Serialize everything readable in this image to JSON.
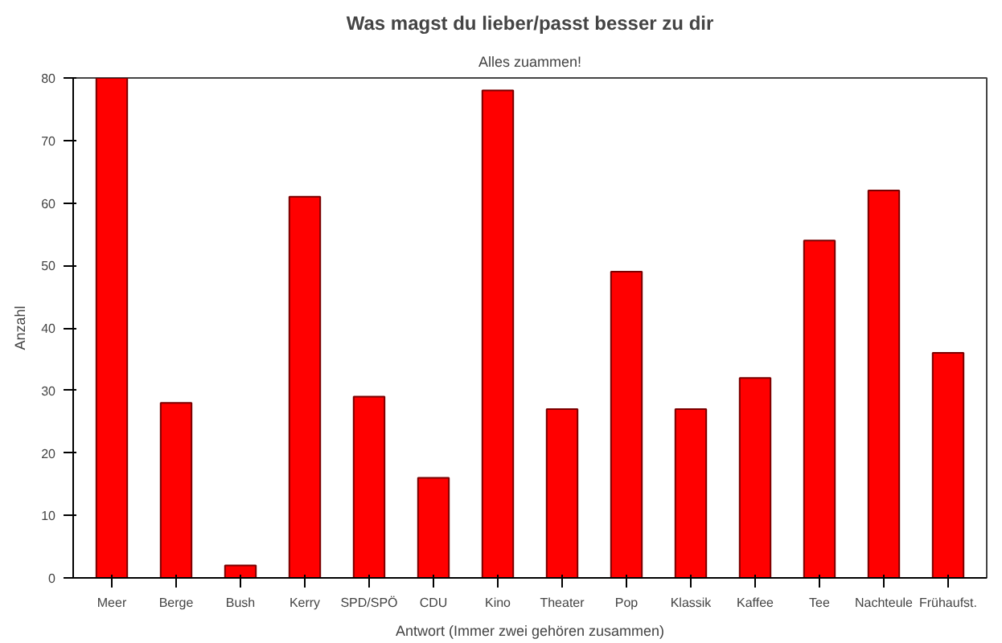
{
  "chart_data": {
    "type": "bar",
    "title": "Was magst du lieber/passt besser zu dir",
    "subtitle": "Alles zuammen!",
    "xlabel": "Antwort (Immer zwei gehören zusammen)",
    "ylabel": "Anzahl",
    "categories": [
      "Meer",
      "Berge",
      "Bush",
      "Kerry",
      "SPD/SPÖ",
      "CDU",
      "Kino",
      "Theater",
      "Pop",
      "Klassik",
      "Kaffee",
      "Tee",
      "Nachteule",
      "Frühaufst."
    ],
    "values": [
      80,
      28,
      2,
      61,
      29,
      16,
      78,
      27,
      49,
      27,
      32,
      54,
      62,
      36
    ],
    "color": "#ff0000",
    "ylim": [
      0,
      80
    ],
    "yticks": [
      0,
      10,
      20,
      30,
      40,
      50,
      60,
      70,
      80
    ],
    "grid": false
  }
}
